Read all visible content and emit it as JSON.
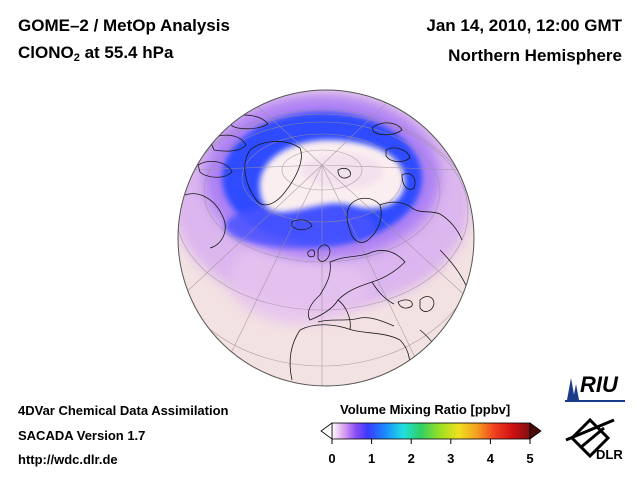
{
  "header": {
    "title_line1": "GOME–2 / MetOp Analysis",
    "title_species": "ClONO",
    "title_sub": "2",
    "title_rest": " at 55.4 hPa",
    "date": "Jan 14, 2010, 12:00 GMT",
    "hemisphere": "Northern Hemisphere"
  },
  "footer": {
    "line1": "4DVar Chemical Data Assimilation",
    "line2": "SACADA Version 1.7",
    "line3": "http://wdc.dlr.de"
  },
  "colorbar": {
    "title": "Volume Mixing Ratio [ppbv]",
    "ticks": [
      "0",
      "1",
      "2",
      "3",
      "4",
      "5"
    ],
    "min": 0,
    "max": 5,
    "colors": [
      "#ffffff",
      "#d9a0f0",
      "#8a4df5",
      "#3a3aff",
      "#1a8cff",
      "#20e0e0",
      "#30d060",
      "#a0e020",
      "#f0e020",
      "#f5a020",
      "#f04020",
      "#d01010",
      "#801010"
    ]
  },
  "logos": {
    "riu": "RIU",
    "dlr": "DLR"
  },
  "colors": {
    "background_low": "#f3e2e2",
    "field_purple": "#c48df0",
    "field_blue": "#2d4bff",
    "vortex_core": "#fbeef0"
  }
}
